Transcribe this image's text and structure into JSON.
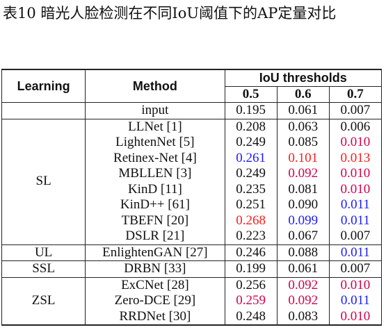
{
  "title": "表10 暗光人脸检测在不同IoU阈值下的AP定量对比",
  "header": {
    "learning": "Learning",
    "method": "Method",
    "iou": "IoU thresholds",
    "t1": "0.5",
    "t2": "0.6",
    "t3": "0.7"
  },
  "colors": {
    "blue": "#1a1aff",
    "red": "#ff1a1a",
    "crimson": "#d4004a",
    "black": "#111111"
  },
  "groups": [
    {
      "label": "",
      "rows": [
        {
          "method": "input",
          "v": [
            "0.195",
            "0.061",
            "0.007"
          ],
          "c": [
            "black",
            "black",
            "black"
          ]
        }
      ]
    },
    {
      "label": "SL",
      "rows": [
        {
          "method": "LLNet [1]",
          "v": [
            "0.208",
            "0.063",
            "0.006"
          ],
          "c": [
            "black",
            "black",
            "black"
          ]
        },
        {
          "method": "LightenNet [5]",
          "v": [
            "0.249",
            "0.085",
            "0.010"
          ],
          "c": [
            "black",
            "black",
            "crimson"
          ]
        },
        {
          "method": "Retinex-Net [4]",
          "v": [
            "0.261",
            "0.101",
            "0.013"
          ],
          "c": [
            "blue",
            "red",
            "red"
          ]
        },
        {
          "method": "MBLLEN [3]",
          "v": [
            "0.249",
            "0.092",
            "0.010"
          ],
          "c": [
            "black",
            "crimson",
            "crimson"
          ]
        },
        {
          "method": "KinD [11]",
          "v": [
            "0.235",
            "0.081",
            "0.010"
          ],
          "c": [
            "black",
            "black",
            "crimson"
          ]
        },
        {
          "method": "KinD++ [61]",
          "v": [
            "0.251",
            "0.090",
            "0.011"
          ],
          "c": [
            "black",
            "black",
            "blue"
          ]
        },
        {
          "method": "TBEFN [20]",
          "v": [
            "0.268",
            "0.099",
            "0.011"
          ],
          "c": [
            "red",
            "blue",
            "blue"
          ]
        },
        {
          "method": "DSLR [21]",
          "v": [
            "0.223",
            "0.067",
            "0.007"
          ],
          "c": [
            "black",
            "black",
            "black"
          ]
        }
      ]
    },
    {
      "label": "UL",
      "rows": [
        {
          "method": "EnlightenGAN [27]",
          "v": [
            "0.246",
            "0.088",
            "0.011"
          ],
          "c": [
            "black",
            "black",
            "blue"
          ]
        }
      ]
    },
    {
      "label": "SSL",
      "rows": [
        {
          "method": "DRBN [33]",
          "v": [
            "0.199",
            "0.061",
            "0.007"
          ],
          "c": [
            "black",
            "black",
            "black"
          ]
        }
      ]
    },
    {
      "label": "ZSL",
      "rows": [
        {
          "method": "ExCNet [28]",
          "v": [
            "0.256",
            "0.092",
            "0.010"
          ],
          "c": [
            "black",
            "crimson",
            "crimson"
          ]
        },
        {
          "method": "Zero-DCE [29]",
          "v": [
            "0.259",
            "0.092",
            "0.011"
          ],
          "c": [
            "crimson",
            "crimson",
            "blue"
          ]
        },
        {
          "method": "RRDNet [30]",
          "v": [
            "0.248",
            "0.083",
            "0.010"
          ],
          "c": [
            "black",
            "black",
            "crimson"
          ]
        }
      ]
    }
  ]
}
